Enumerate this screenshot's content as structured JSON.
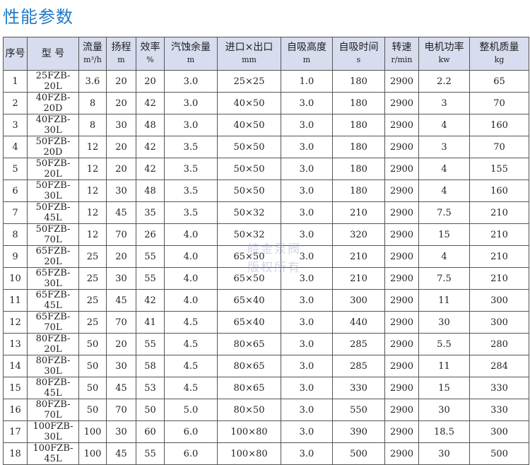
{
  "title": "性能参数",
  "watermark": [
    "皖金泵阀",
    "版权所有"
  ],
  "headers": [
    {
      "label": "序号",
      "unit": ""
    },
    {
      "label": "型 号",
      "unit": ""
    },
    {
      "label": "流量",
      "unit": "m³/h"
    },
    {
      "label": "扬程",
      "unit": "m"
    },
    {
      "label": "效率",
      "unit": "%"
    },
    {
      "label": "汽蚀余量",
      "unit": "m"
    },
    {
      "label": "进口×出口",
      "unit": "mm"
    },
    {
      "label": "自吸高度",
      "unit": "m"
    },
    {
      "label": "自吸时间",
      "unit": "s"
    },
    {
      "label": "转速",
      "unit": "r/min"
    },
    {
      "label": "电机功率",
      "unit": "kw"
    },
    {
      "label": "整机质量",
      "unit": "kg"
    }
  ],
  "rows": [
    [
      "1",
      "25FZB-20L",
      "3.6",
      "20",
      "20",
      "3.0",
      "25×25",
      "1.0",
      "180",
      "2900",
      "2.2",
      "65"
    ],
    [
      "2",
      "40FZB-20D",
      "8",
      "20",
      "42",
      "3.0",
      "40×50",
      "3.0",
      "180",
      "2900",
      "3",
      "70"
    ],
    [
      "3",
      "40FZB-30L",
      "8",
      "30",
      "48",
      "3.0",
      "40×50",
      "3.0",
      "180",
      "2900",
      "4",
      "160"
    ],
    [
      "4",
      "50FZB-20D",
      "12",
      "20",
      "42",
      "3.5",
      "50×50",
      "3.0",
      "180",
      "2900",
      "3",
      "70"
    ],
    [
      "5",
      "50FZB-20L",
      "12",
      "20",
      "42",
      "3.5",
      "50×50",
      "3.0",
      "180",
      "2900",
      "4",
      "155"
    ],
    [
      "6",
      "50FZB-30L",
      "12",
      "30",
      "48",
      "3.5",
      "50×50",
      "3.0",
      "180",
      "2900",
      "4",
      "160"
    ],
    [
      "7",
      "50FZB-45L",
      "12",
      "45",
      "35",
      "3.5",
      "50×32",
      "3.0",
      "210",
      "2900",
      "7.5",
      "210"
    ],
    [
      "8",
      "50FZB-70L",
      "12",
      "70",
      "26",
      "4.0",
      "50×32",
      "3.0",
      "320",
      "2900",
      "15",
      "210"
    ],
    [
      "9",
      "65FZB-20L",
      "25",
      "20",
      "55",
      "4.0",
      "65×50",
      "3.0",
      "210",
      "2900",
      "4",
      "210"
    ],
    [
      "10",
      "65FZB-30L",
      "25",
      "30",
      "55",
      "4.0",
      "65×50",
      "3.0",
      "210",
      "2900",
      "7.5",
      "210"
    ],
    [
      "11",
      "65FZB-45L",
      "25",
      "45",
      "42",
      "4.0",
      "65×40",
      "3.0",
      "300",
      "2900",
      "11",
      "300"
    ],
    [
      "12",
      "65FZB-70L",
      "25",
      "70",
      "41",
      "4.5",
      "65×40",
      "3.0",
      "440",
      "2900",
      "30",
      "300"
    ],
    [
      "13",
      "80FZB-20L",
      "50",
      "20",
      "55",
      "4.5",
      "80×65",
      "3.0",
      "285",
      "2900",
      "5.5",
      "280"
    ],
    [
      "14",
      "80FZB-30L",
      "50",
      "30",
      "58",
      "4.5",
      "80×65",
      "3.0",
      "285",
      "2900",
      "11",
      "284"
    ],
    [
      "15",
      "80FZB-45L",
      "50",
      "45",
      "53",
      "4.5",
      "80×65",
      "3.0",
      "330",
      "2900",
      "15",
      "330"
    ],
    [
      "16",
      "80FZB-70L",
      "50",
      "70",
      "50",
      "5.0",
      "80×50",
      "3.0",
      "550",
      "2900",
      "30",
      "330"
    ],
    [
      "17",
      "100FZB-30L",
      "100",
      "30",
      "60",
      "6.0",
      "100×80",
      "3.0",
      "390",
      "2900",
      "18.5",
      "300"
    ],
    [
      "18",
      "100FZB-45L",
      "100",
      "45",
      "55",
      "6.0",
      "100×80",
      "3.0",
      "500",
      "2900",
      "30",
      "500"
    ]
  ]
}
